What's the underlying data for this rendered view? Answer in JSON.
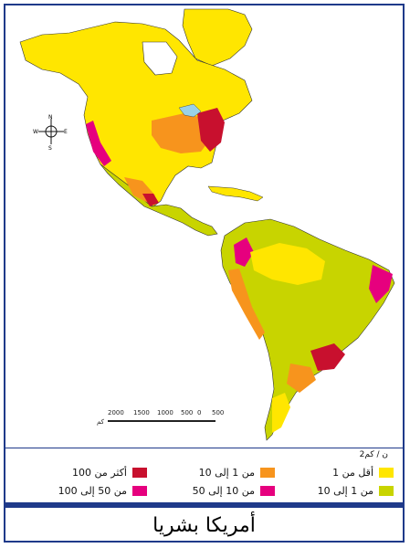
{
  "title": "أمريكا بشريا",
  "legend": {
    "unit": "ن / كم2",
    "items": [
      {
        "label": "أقل من 1",
        "color": "#ffe600"
      },
      {
        "label": "من 1 إلى 10",
        "color": "#c8d400"
      },
      {
        "label": "من 1 إلى 10",
        "color": "#f7941d"
      },
      {
        "label": "من 10 إلى 50",
        "color": "#e6007e"
      },
      {
        "label": "أكثر من 100",
        "color": "#c8102e"
      },
      {
        "label": "من 50 إلى 100",
        "color": "#e6007e"
      }
    ]
  },
  "scale": {
    "ticks": [
      "2000",
      "1500",
      "1000",
      "500",
      "0",
      "500"
    ],
    "unit": "كم"
  },
  "compass": {
    "n": "N",
    "s": "S",
    "e": "E",
    "w": "W"
  },
  "colors": {
    "ocean": "#ffffff",
    "land_low": "#ffe600",
    "land_mid": "#c8d400",
    "land_orange": "#f7941d",
    "land_magenta": "#e6007e",
    "land_red": "#c8102e",
    "lakes": "#9ad1e6",
    "frame": "#1f3a8a"
  }
}
